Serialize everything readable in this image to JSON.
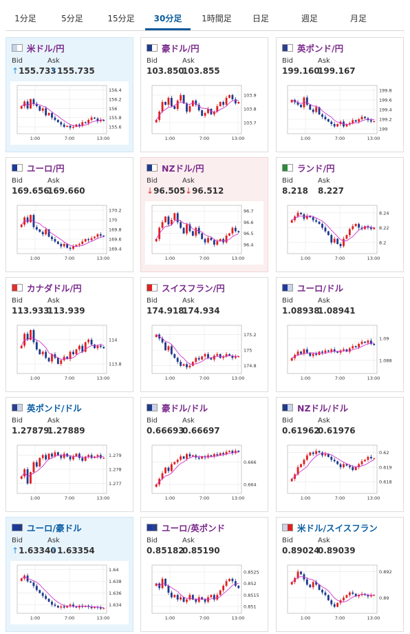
{
  "tabs": [
    {
      "label": "1分足",
      "active": false
    },
    {
      "label": "5分足",
      "active": false
    },
    {
      "label": "15分足",
      "active": false
    },
    {
      "label": "30分足",
      "active": true
    },
    {
      "label": "1時間足",
      "active": false
    },
    {
      "label": "日足",
      "active": false
    },
    {
      "label": "週足",
      "active": false
    },
    {
      "label": "月足",
      "active": false
    }
  ],
  "colors": {
    "accent": "#0a5a9c",
    "up_candle": "#e02020",
    "down_candle": "#1f3a8c",
    "moving_average": "#cc33cc",
    "tick_up": "#2a8ad8",
    "tick_down": "#d33333"
  },
  "cards": [
    {
      "title": "米ドル/円",
      "bid_label": "Bid",
      "ask_label": "Ask",
      "bid": "155.733",
      "ask": "155.735",
      "tick": "up",
      "tick_symbol": "↑",
      "highlight": "blue",
      "title_color": "purple",
      "flag": "us-jp",
      "chart_data": {
        "type": "candlestick",
        "x_ticks": [
          "1:00",
          "7:00",
          "13:00"
        ],
        "y_ticks": [
          "156.4",
          "156.2",
          "156",
          "155.8",
          "155.6"
        ],
        "ylim": [
          155.45,
          156.5
        ],
        "close": [
          156.05,
          156.15,
          156.0,
          156.2,
          156.1,
          156.05,
          155.95,
          156.0,
          155.85,
          155.9,
          155.8,
          155.75,
          155.7,
          155.65,
          155.6,
          155.62,
          155.58,
          155.6,
          155.65,
          155.62,
          155.7,
          155.68,
          155.75,
          155.8,
          155.78,
          155.72,
          155.75,
          155.73
        ]
      }
    },
    {
      "title": "豪ドル/円",
      "bid_label": "Bid",
      "ask_label": "Ask",
      "bid": "103.850",
      "ask": "103.855",
      "tick": "none",
      "tick_symbol": "",
      "highlight": "none",
      "title_color": "purple",
      "flag": "au-jp",
      "chart_data": {
        "type": "candlestick",
        "x_ticks": [
          "1:00",
          "7:00",
          "13:00"
        ],
        "y_ticks": [
          "103.9",
          "103.8",
          "103.7"
        ],
        "ylim": [
          103.62,
          103.97
        ],
        "close": [
          103.72,
          103.78,
          103.85,
          103.83,
          103.88,
          103.82,
          103.8,
          103.86,
          103.9,
          103.84,
          103.78,
          103.82,
          103.86,
          103.83,
          103.79,
          103.75,
          103.77,
          103.8,
          103.76,
          103.78,
          103.82,
          103.85,
          103.83,
          103.88,
          103.9,
          103.87,
          103.84,
          103.85
        ]
      }
    },
    {
      "title": "英ポンド/円",
      "bid_label": "Bid",
      "ask_label": "Ask",
      "bid": "199.160",
      "ask": "199.167",
      "tick": "none",
      "tick_symbol": "",
      "highlight": "none",
      "title_color": "purple",
      "flag": "uk-jp",
      "chart_data": {
        "type": "candlestick",
        "x_ticks": [
          "1:00",
          "7:00",
          "13:00"
        ],
        "y_ticks": [
          "199.8",
          "199.6",
          "199.4",
          "199.2",
          "199"
        ],
        "ylim": [
          198.9,
          199.9
        ],
        "close": [
          199.6,
          199.55,
          199.5,
          199.45,
          199.65,
          199.5,
          199.4,
          199.35,
          199.45,
          199.3,
          199.25,
          199.2,
          199.15,
          199.1,
          199.05,
          199.1,
          199.15,
          199.05,
          199.1,
          199.12,
          199.18,
          199.15,
          199.2,
          199.25,
          199.22,
          199.18,
          199.15,
          199.16
        ]
      }
    },
    {
      "title": "ユーロ/円",
      "bid_label": "Bid",
      "ask_label": "Ask",
      "bid": "169.656",
      "ask": "169.660",
      "tick": "none",
      "tick_symbol": "",
      "highlight": "none",
      "title_color": "purple",
      "flag": "eu-jp",
      "chart_data": {
        "type": "candlestick",
        "x_ticks": [
          "1:00",
          "7:00",
          "13:00"
        ],
        "y_ticks": [
          "170.2",
          "170",
          "169.8",
          "169.6",
          "169.4"
        ],
        "ylim": [
          169.3,
          170.3
        ],
        "close": [
          169.9,
          170.05,
          169.95,
          170.1,
          169.85,
          169.8,
          169.75,
          169.7,
          169.8,
          169.65,
          169.6,
          169.55,
          169.5,
          169.45,
          169.5,
          169.42,
          169.4,
          169.45,
          169.48,
          169.5,
          169.55,
          169.6,
          169.58,
          169.62,
          169.65,
          169.7,
          169.67,
          169.66
        ]
      }
    },
    {
      "title": "NZドル/円",
      "bid_label": "Bid",
      "ask_label": "Ask",
      "bid": "96.505",
      "ask": "96.512",
      "tick": "down",
      "tick_symbol": "↓",
      "highlight": "pink",
      "title_color": "purple",
      "flag": "nz-jp",
      "chart_data": {
        "type": "candlestick",
        "x_ticks": [
          "1:00",
          "7:00",
          "13:00"
        ],
        "y_ticks": [
          "96.7",
          "96.6",
          "96.5",
          "96.4"
        ],
        "ylim": [
          96.32,
          96.75
        ],
        "close": [
          96.45,
          96.55,
          96.6,
          96.65,
          96.58,
          96.62,
          96.68,
          96.6,
          96.55,
          96.5,
          96.58,
          96.52,
          96.48,
          96.55,
          96.5,
          96.45,
          96.42,
          96.46,
          96.44,
          96.4,
          96.43,
          96.45,
          96.42,
          96.48,
          96.5,
          96.55,
          96.52,
          96.51
        ]
      }
    },
    {
      "title": "ランド/円",
      "bid_label": "Bid",
      "ask_label": "Ask",
      "bid": "8.218",
      "ask": "8.227",
      "tick": "none",
      "tick_symbol": "",
      "highlight": "none",
      "title_color": "purple",
      "flag": "za-jp",
      "chart_data": {
        "type": "candlestick",
        "x_ticks": [
          "1:00",
          "7:00",
          "13:00"
        ],
        "y_ticks": [
          "8.24",
          "8.22",
          "8.2"
        ],
        "ylim": [
          8.185,
          8.25
        ],
        "close": [
          8.23,
          8.235,
          8.24,
          8.238,
          8.232,
          8.236,
          8.234,
          8.23,
          8.228,
          8.225,
          8.22,
          8.215,
          8.21,
          8.2,
          8.205,
          8.198,
          8.195,
          8.205,
          8.21,
          8.218,
          8.222,
          8.225,
          8.22,
          8.218,
          8.222,
          8.22,
          8.218,
          8.22
        ]
      }
    },
    {
      "title": "カナダドル/円",
      "bid_label": "Bid",
      "ask_label": "Ask",
      "bid": "113.933",
      "ask": "113.939",
      "tick": "none",
      "tick_symbol": "",
      "highlight": "none",
      "title_color": "purple",
      "flag": "ca-jp",
      "chart_data": {
        "type": "candlestick",
        "x_ticks": [
          "1:00",
          "7:00",
          "13:00"
        ],
        "y_ticks": [
          "114",
          "113.8"
        ],
        "ylim": [
          113.72,
          114.12
        ],
        "close": [
          113.95,
          114.05,
          114.0,
          114.08,
          113.98,
          113.92,
          113.88,
          113.9,
          113.85,
          113.82,
          113.88,
          113.85,
          113.8,
          113.83,
          113.86,
          113.84,
          113.9,
          113.88,
          113.92,
          113.95,
          113.9,
          113.98,
          114.0,
          113.96,
          113.93,
          113.95,
          113.94,
          113.93
        ]
      }
    },
    {
      "title": "スイスフラン/円",
      "bid_label": "Bid",
      "ask_label": "Ask",
      "bid": "174.918",
      "ask": "174.934",
      "tick": "none",
      "tick_symbol": "",
      "highlight": "none",
      "title_color": "purple",
      "flag": "ch-jp",
      "chart_data": {
        "type": "candlestick",
        "x_ticks": [
          "1:00",
          "7:00",
          "13:00"
        ],
        "y_ticks": [
          "175.2",
          "175",
          "174.8"
        ],
        "ylim": [
          174.7,
          175.32
        ],
        "close": [
          175.2,
          175.15,
          175.1,
          175.0,
          175.05,
          174.95,
          174.9,
          174.85,
          174.8,
          174.82,
          174.78,
          174.8,
          174.85,
          174.9,
          174.88,
          174.92,
          174.95,
          174.9,
          174.88,
          174.93,
          174.95,
          174.9,
          174.92,
          174.95,
          174.93,
          174.9,
          174.92,
          174.92
        ]
      }
    },
    {
      "title": "ユーロ/ドル",
      "bid_label": "Bid",
      "ask_label": "Ask",
      "bid": "1.08938",
      "ask": "1.08941",
      "tick": "none",
      "tick_symbol": "",
      "highlight": "none",
      "title_color": "purple",
      "flag": "eu-us",
      "chart_data": {
        "type": "candlestick",
        "x_ticks": [
          "1:00",
          "7:00",
          "13:00"
        ],
        "y_ticks": [
          "1.09",
          "1.088"
        ],
        "ylim": [
          1.0868,
          1.0912
        ],
        "close": [
          1.0882,
          1.0885,
          1.0888,
          1.0886,
          1.089,
          1.0887,
          1.0884,
          1.0886,
          1.0885,
          1.0888,
          1.0887,
          1.0889,
          1.0888,
          1.089,
          1.0888,
          1.0887,
          1.0889,
          1.089,
          1.0888,
          1.0891,
          1.0893,
          1.0892,
          1.0895,
          1.0897,
          1.0896,
          1.0898,
          1.0895,
          1.0894
        ]
      }
    },
    {
      "title": "英ポンド/ドル",
      "bid_label": "Bid",
      "ask_label": "Ask",
      "bid": "1.27879",
      "ask": "1.27889",
      "tick": "none",
      "tick_symbol": "",
      "highlight": "none",
      "title_color": "blue",
      "flag": "uk-us",
      "chart_data": {
        "type": "candlestick",
        "x_ticks": [
          "1:00",
          "7:00",
          "13:00"
        ],
        "y_ticks": [
          "1.279",
          "1.278",
          "1.277"
        ],
        "ylim": [
          1.2763,
          1.2797
        ],
        "close": [
          1.2775,
          1.278,
          1.277,
          1.2778,
          1.2785,
          1.2782,
          1.2788,
          1.279,
          1.2787,
          1.2791,
          1.2789,
          1.2792,
          1.279,
          1.2788,
          1.2791,
          1.2789,
          1.2787,
          1.2789,
          1.2791,
          1.2788,
          1.2786,
          1.2789,
          1.279,
          1.2788,
          1.2789,
          1.279,
          1.2788,
          1.2788
        ]
      }
    },
    {
      "title": "豪ドル/ドル",
      "bid_label": "Bid",
      "ask_label": "Ask",
      "bid": "0.66693",
      "ask": "0.66697",
      "tick": "none",
      "tick_symbol": "",
      "highlight": "none",
      "title_color": "purple",
      "flag": "au-us",
      "chart_data": {
        "type": "candlestick",
        "x_ticks": [
          "1:00",
          "7:00",
          "13:00"
        ],
        "y_ticks": [
          "0.666",
          "0.664"
        ],
        "ylim": [
          0.6632,
          0.6675
        ],
        "close": [
          0.664,
          0.6645,
          0.665,
          0.6655,
          0.6652,
          0.6658,
          0.666,
          0.6662,
          0.6665,
          0.6663,
          0.6667,
          0.6665,
          0.6666,
          0.6664,
          0.6663,
          0.6665,
          0.6664,
          0.6666,
          0.6665,
          0.6667,
          0.6666,
          0.6668,
          0.6667,
          0.6669,
          0.667,
          0.6668,
          0.667,
          0.6669
        ]
      }
    },
    {
      "title": "NZドル/ドル",
      "bid_label": "Bid",
      "ask_label": "Ask",
      "bid": "0.61962",
      "ask": "0.61976",
      "tick": "none",
      "tick_symbol": "",
      "highlight": "none",
      "title_color": "purple",
      "flag": "nz-us",
      "chart_data": {
        "type": "candlestick",
        "x_ticks": [
          "1:00",
          "7:00",
          "13:00"
        ],
        "y_ticks": [
          "0.62",
          "0.619",
          "0.618"
        ],
        "ylim": [
          0.6172,
          0.6205
        ],
        "close": [
          0.6182,
          0.6185,
          0.619,
          0.6192,
          0.6195,
          0.6198,
          0.62,
          0.6199,
          0.6201,
          0.62,
          0.6198,
          0.6199,
          0.6197,
          0.6195,
          0.6194,
          0.6192,
          0.619,
          0.6192,
          0.6191,
          0.619,
          0.6188,
          0.619,
          0.6192,
          0.6194,
          0.6195,
          0.6197,
          0.6196,
          0.6196
        ]
      }
    },
    {
      "title": "ユーロ/豪ドル",
      "bid_label": "Bid",
      "ask_label": "Ask",
      "bid": "1.63340",
      "ask": "1.63354",
      "tick": "up",
      "tick_symbol": "↑",
      "highlight": "blue",
      "title_color": "blue",
      "flag": "eu-au",
      "chart_data": {
        "type": "candlestick",
        "x_ticks": [
          "1:00",
          "7:00",
          "13:00"
        ],
        "y_ticks": [
          "1.64",
          "1.638",
          "1.636",
          "1.634"
        ],
        "ylim": [
          1.6325,
          1.6408
        ],
        "close": [
          1.6385,
          1.639,
          1.638,
          1.6378,
          1.6372,
          1.6365,
          1.636,
          1.6355,
          1.635,
          1.6345,
          1.634,
          1.6338,
          1.6335,
          1.6337,
          1.6335,
          1.6338,
          1.634,
          1.6337,
          1.6335,
          1.6338,
          1.6336,
          1.6338,
          1.6336,
          1.6334,
          1.6336,
          1.6335,
          1.6333,
          1.6334
        ]
      }
    },
    {
      "title": "ユーロ/英ポンド",
      "bid_label": "Bid",
      "ask_label": "Ask",
      "bid": "0.85182",
      "ask": "0.85190",
      "tick": "none",
      "tick_symbol": "",
      "highlight": "none",
      "title_color": "purple",
      "flag": "eu-uk",
      "chart_data": {
        "type": "candlestick",
        "x_ticks": [
          "1:00",
          "7:00",
          "13:00"
        ],
        "y_ticks": [
          "0.8525",
          "0.852",
          "0.8515",
          "0.851"
        ],
        "ylim": [
          0.8507,
          0.8528
        ],
        "close": [
          0.852,
          0.8518,
          0.8522,
          0.8519,
          0.8516,
          0.8514,
          0.8515,
          0.8513,
          0.8514,
          0.8512,
          0.8513,
          0.8515,
          0.8513,
          0.8512,
          0.8514,
          0.8513,
          0.8512,
          0.8514,
          0.8515,
          0.8513,
          0.8515,
          0.8517,
          0.8519,
          0.8521,
          0.8522,
          0.8521,
          0.8519,
          0.8518
        ]
      }
    },
    {
      "title": "米ドル/スイスフラン",
      "bid_label": "Bid",
      "ask_label": "Ask",
      "bid": "0.89024",
      "ask": "0.89039",
      "tick": "none",
      "tick_symbol": "",
      "highlight": "none",
      "title_color": "blue",
      "flag": "us-ch",
      "chart_data": {
        "type": "candlestick",
        "x_ticks": [
          "1:00",
          "7:00",
          "13:00"
        ],
        "y_ticks": [
          "0.892",
          "0.89"
        ],
        "ylim": [
          0.8888,
          0.8925
        ],
        "close": [
          0.8912,
          0.8915,
          0.892,
          0.8918,
          0.8914,
          0.891,
          0.8908,
          0.8912,
          0.891,
          0.8906,
          0.8904,
          0.8902,
          0.8898,
          0.8895,
          0.8893,
          0.8896,
          0.8898,
          0.89,
          0.8902,
          0.8904,
          0.8903,
          0.8901,
          0.8902,
          0.8903,
          0.8902,
          0.8901,
          0.8902,
          0.8902
        ]
      }
    }
  ]
}
